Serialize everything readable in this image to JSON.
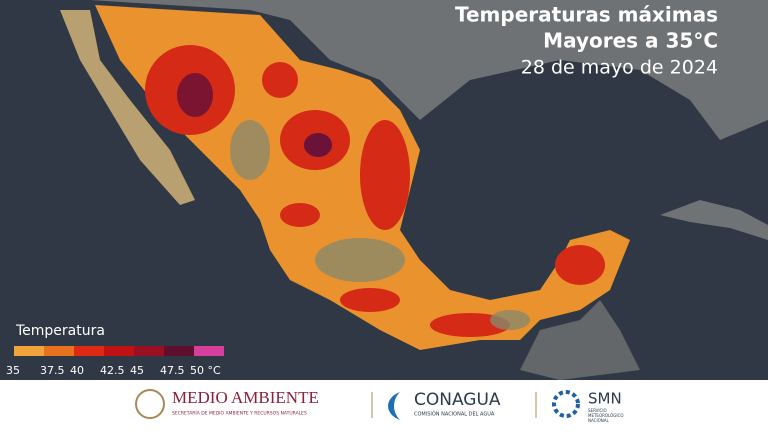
{
  "header": {
    "title_line1": "Temperaturas máximas",
    "title_line2": "Mayores a 35°C",
    "date": "28 de mayo de 2024"
  },
  "legend": {
    "title": "Temperatura",
    "colors": [
      "#f0a43a",
      "#e8721e",
      "#de2a14",
      "#bf1212",
      "#9a0f22",
      "#5e0f2e",
      "#d6409c"
    ],
    "ticks": [
      "35",
      "37.5",
      "40",
      "42.5",
      "45",
      "47.5",
      "50 °C"
    ]
  },
  "footer": {
    "logo1": {
      "name": "MEDIO AMBIENTE",
      "subtitle": "SECRETARÍA DE MEDIO AMBIENTE Y RECURSOS NATURALES"
    },
    "logo2": {
      "name": "CONAGUA",
      "subtitle": "COMISIÓN NACIONAL DEL AGUA"
    },
    "logo3": {
      "name": "SMN",
      "subtitle": "SERVICIO METEOROLÓGICO NACIONAL"
    }
  }
}
